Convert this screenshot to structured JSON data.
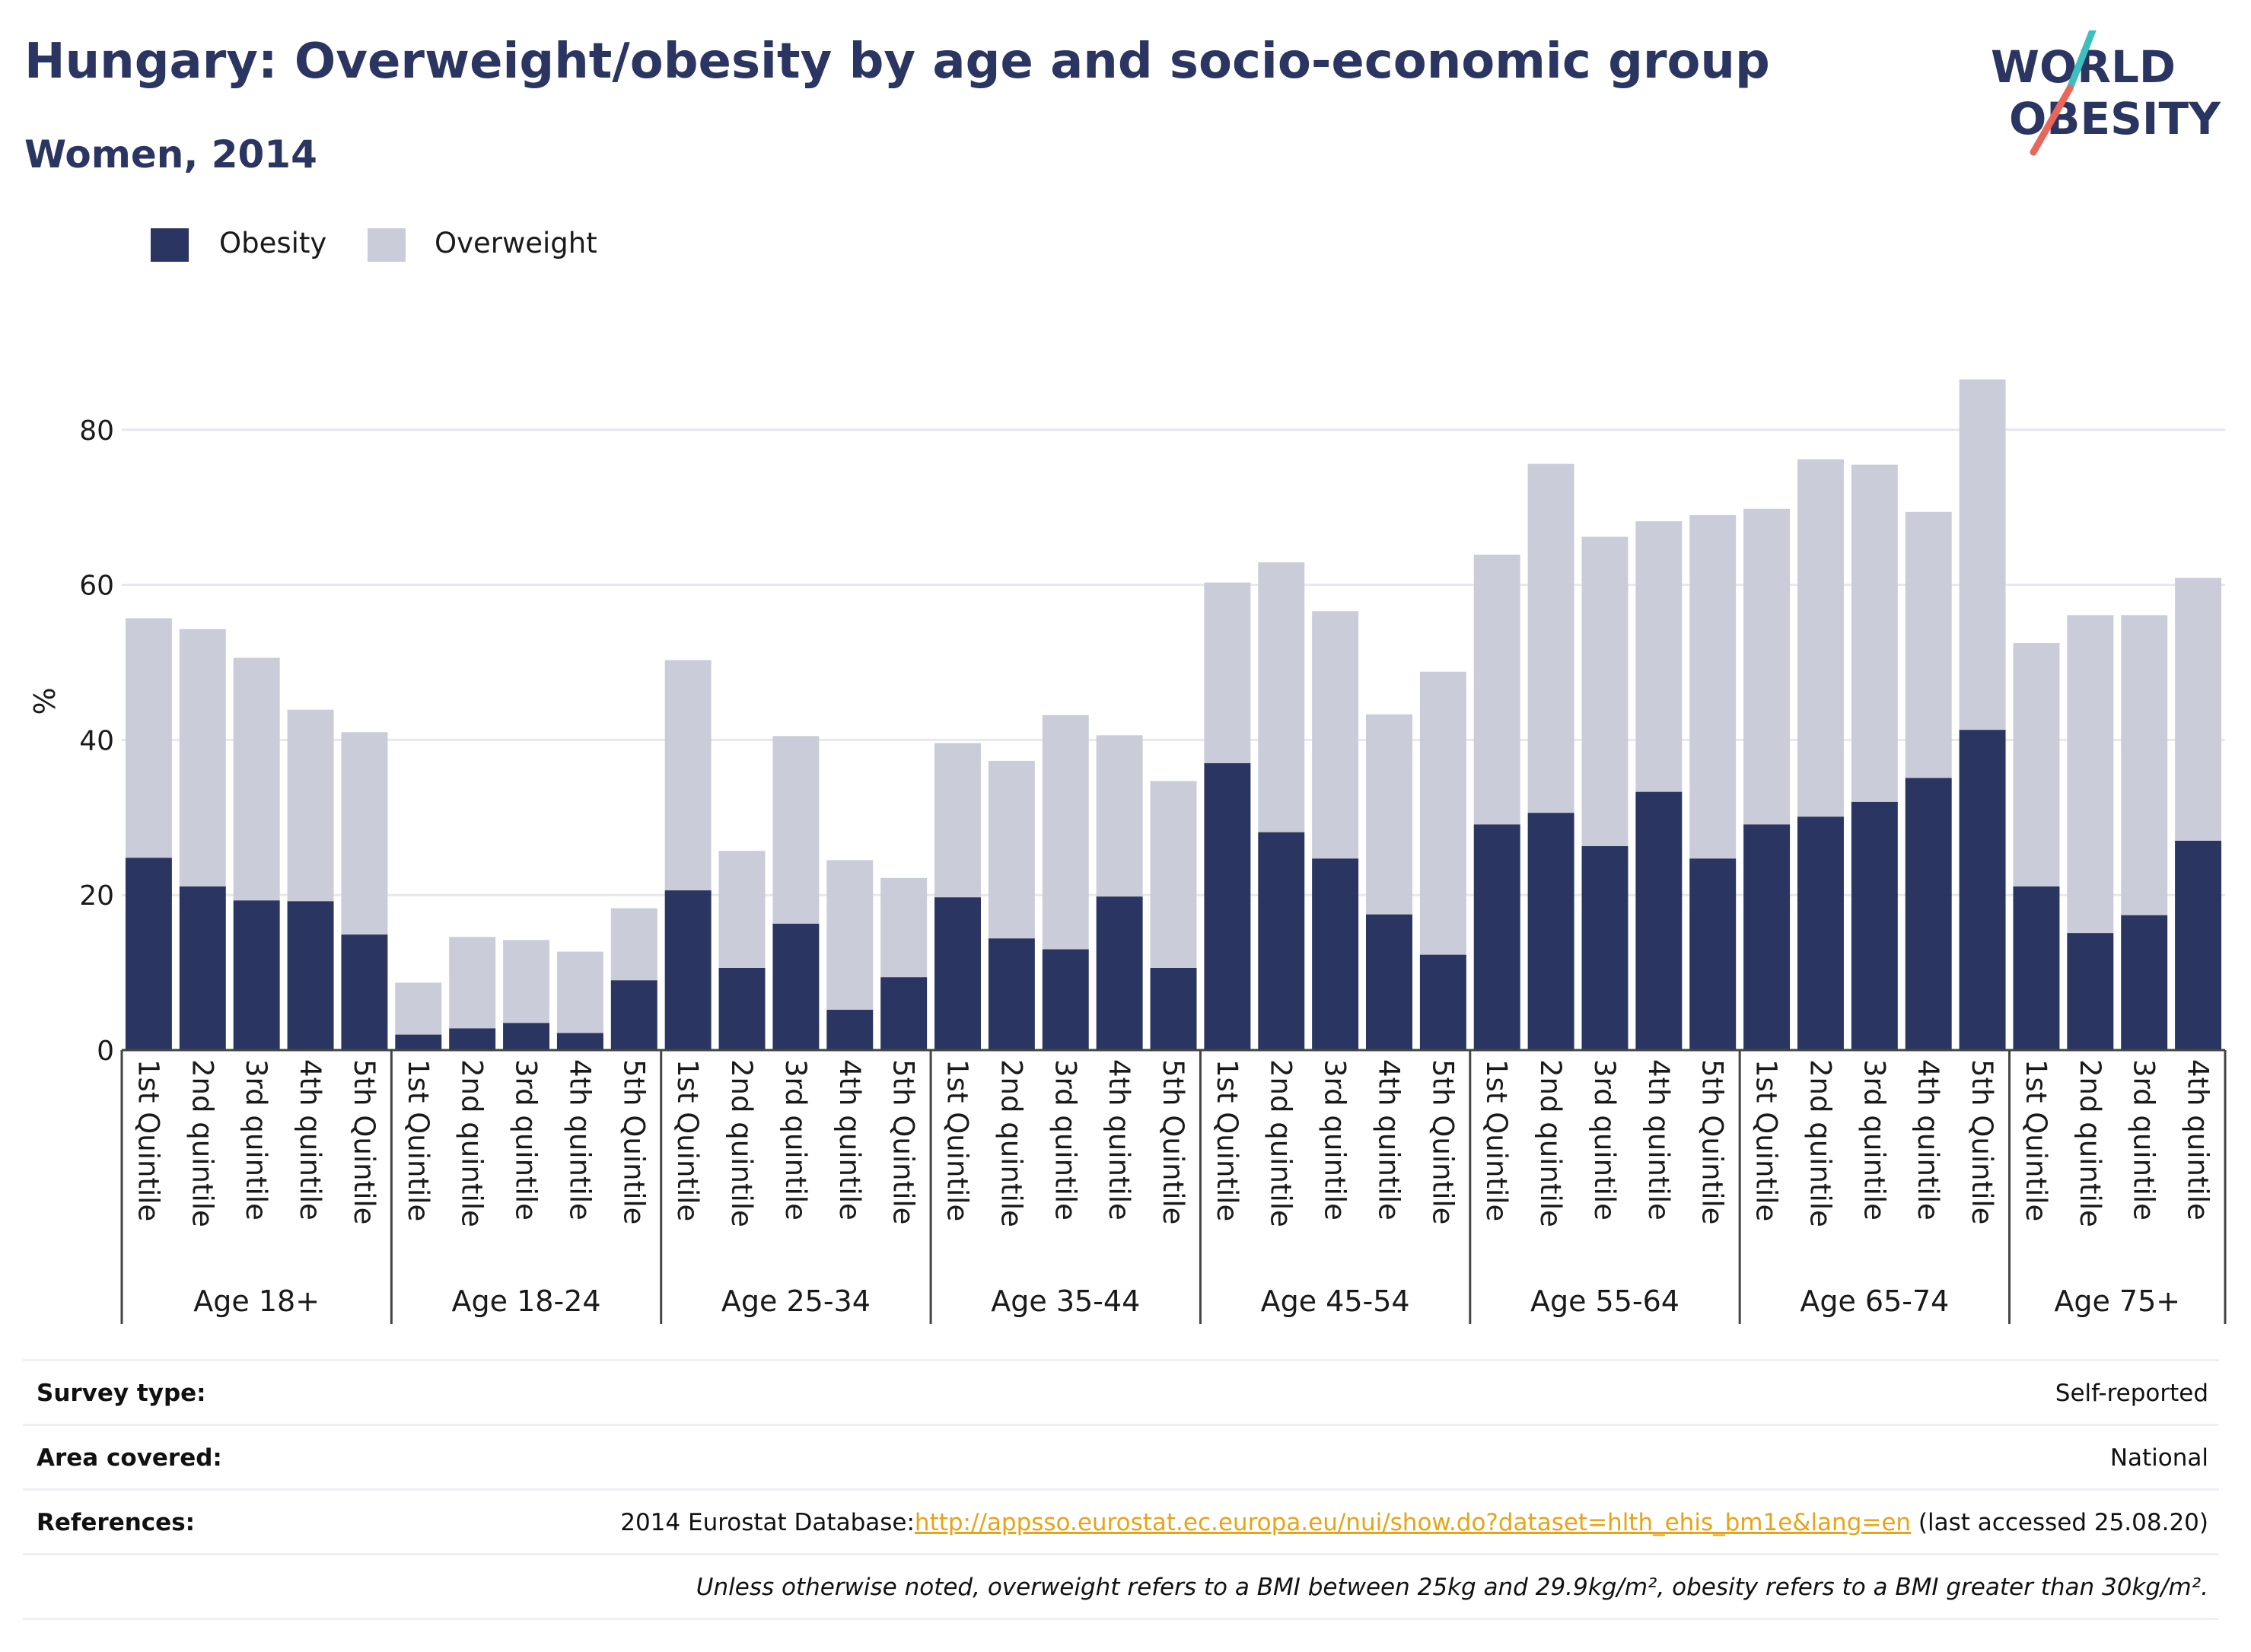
{
  "header": {
    "title": "Hungary: Overweight/obesity by age and socio-economic group",
    "subtitle": "Women, 2014"
  },
  "logo": {
    "line1": "WORLD",
    "line2": "OBESITY"
  },
  "colors": {
    "obesity": "#2b3561",
    "overweight": "#cacdd9",
    "grid": "#e6e8ee",
    "link": "#e8a317",
    "logo_teal": "#3dbfbf",
    "logo_red": "#e8675a"
  },
  "legend": [
    {
      "label": "Obesity",
      "color": "#2b3561"
    },
    {
      "label": "Overweight",
      "color": "#cacdd9"
    }
  ],
  "chart_data": {
    "type": "bar",
    "stacked": true,
    "ylabel": "%",
    "ylim": [
      0,
      90
    ],
    "yticks": [
      0,
      20,
      40,
      60,
      80
    ],
    "grid": true,
    "legend_position": "top-left",
    "groups": [
      {
        "label": "Age 18+",
        "categories": [
          "1st Quintile",
          "2nd quintile",
          "3rd quintile",
          "4th quintile",
          "5th Quintile"
        ]
      },
      {
        "label": "Age 18-24",
        "categories": [
          "1st Quintile",
          "2nd quintile",
          "3rd quintile",
          "4th quintile",
          "5th Quintile"
        ]
      },
      {
        "label": "Age 25-34",
        "categories": [
          "1st Quintile",
          "2nd quintile",
          "3rd quintile",
          "4th quintile",
          "5th Quintile"
        ]
      },
      {
        "label": "Age 35-44",
        "categories": [
          "1st Quintile",
          "2nd quintile",
          "3rd quintile",
          "4th quintile",
          "5th Quintile"
        ]
      },
      {
        "label": "Age 45-54",
        "categories": [
          "1st Quintile",
          "2nd quintile",
          "3rd quintile",
          "4th quintile",
          "5th Quintile"
        ]
      },
      {
        "label": "Age 55-64",
        "categories": [
          "1st Quintile",
          "2nd quintile",
          "3rd quintile",
          "4th quintile",
          "5th Quintile"
        ]
      },
      {
        "label": "Age 65-74",
        "categories": [
          "1st Quintile",
          "2nd quintile",
          "3rd quintile",
          "4th quintile",
          "5th Quintile"
        ]
      },
      {
        "label": "Age 75+",
        "categories": [
          "1st Quintile",
          "2nd quintile",
          "3rd quintile",
          "4th quintile"
        ]
      }
    ],
    "series": [
      {
        "name": "Obesity",
        "values": [
          24.8,
          21.1,
          19.3,
          19.2,
          14.9,
          2.0,
          2.8,
          3.5,
          2.2,
          9.0,
          20.6,
          10.6,
          16.3,
          5.2,
          9.4,
          19.7,
          14.4,
          13.0,
          19.8,
          10.6,
          37.0,
          28.1,
          24.7,
          17.5,
          12.3,
          29.1,
          30.6,
          26.3,
          33.3,
          24.7,
          29.1,
          30.1,
          32.0,
          35.1,
          41.3,
          21.1,
          15.1,
          17.4,
          27.0
        ]
      },
      {
        "name": "Overweight",
        "values": [
          30.9,
          33.2,
          31.3,
          24.7,
          26.1,
          6.7,
          11.8,
          10.7,
          10.5,
          9.3,
          29.7,
          15.1,
          24.2,
          19.3,
          12.8,
          19.9,
          22.9,
          30.2,
          20.8,
          24.1,
          23.3,
          34.8,
          31.9,
          25.8,
          36.5,
          34.8,
          45.0,
          39.9,
          34.9,
          44.3,
          40.7,
          46.1,
          43.5,
          34.3,
          45.2,
          31.4,
          41.0,
          38.7,
          33.9
        ]
      }
    ]
  },
  "footer": {
    "rows": [
      {
        "label": "Survey type:",
        "value": "Self-reported"
      },
      {
        "label": "Area covered:",
        "value": "National"
      },
      {
        "label": "References:",
        "value_prefix": "2014 Eurostat Database:",
        "link": "http://appsso.eurostat.ec.europa.eu/nui/show.do?dataset=hlth_ehis_bm1e&lang=en",
        "value_suffix": " (last accessed 25.08.20)"
      },
      {
        "label": "",
        "value": "Unless otherwise noted, overweight refers to a BMI between 25kg and 29.9kg/m², obesity refers to a BMI greater than 30kg/m²."
      }
    ]
  }
}
